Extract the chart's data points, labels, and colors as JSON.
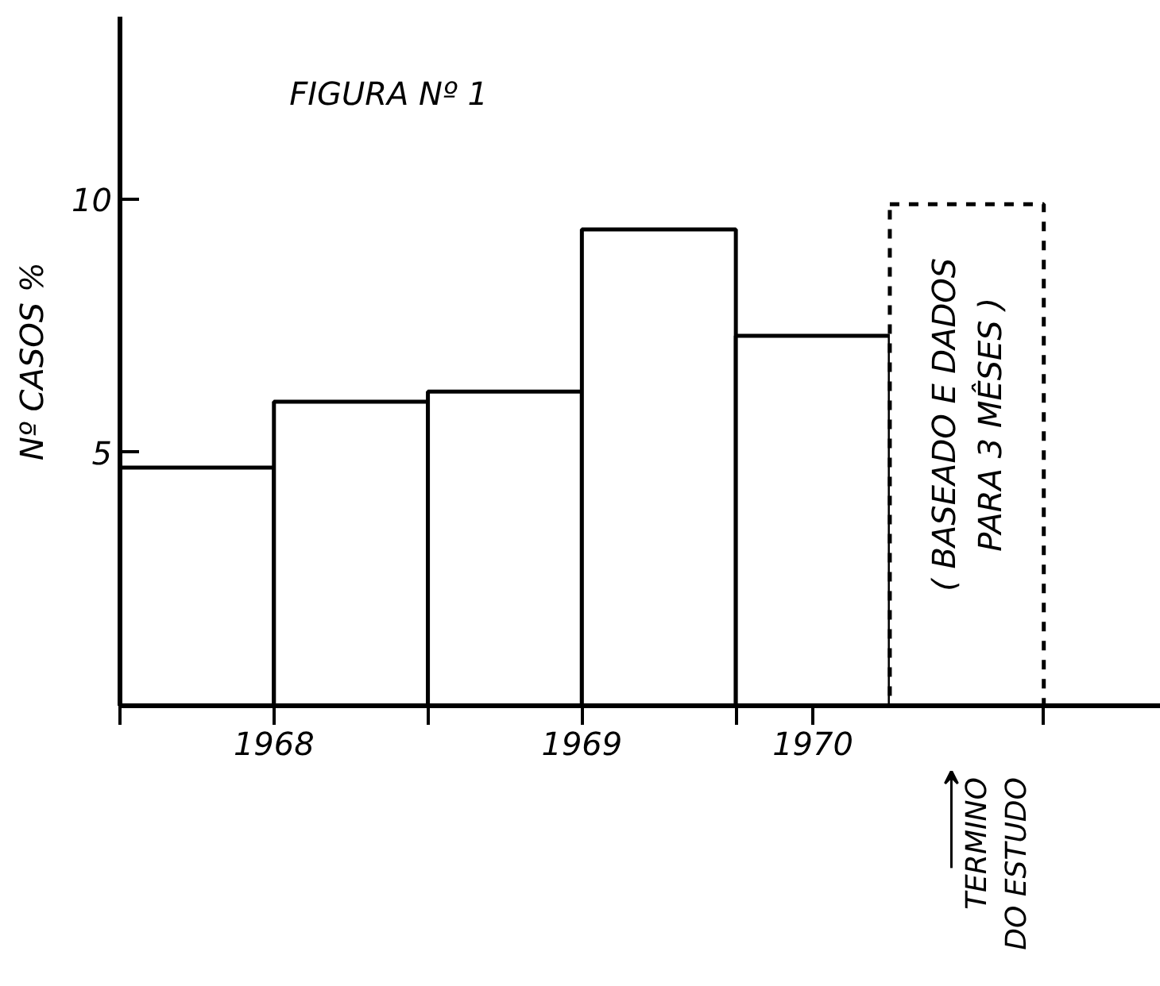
{
  "chart_data": {
    "type": "bar",
    "title": "FIGURA Nº 1",
    "ylabel": "Nº CASOS %",
    "x": [
      1968.25,
      1968.75,
      1969.25,
      1969.75,
      1970.25,
      1970.75
    ],
    "series": [
      {
        "color": "#000000",
        "line_style": "solid",
        "values": [
          4.7,
          6.0,
          6.2,
          9.4,
          7.3,
          null
        ]
      },
      {
        "color": "#000000",
        "line_style": "dashed",
        "values": [
          null,
          null,
          null,
          null,
          null,
          9.9
        ]
      }
    ],
    "xlim": [
      1968,
      1971.38
    ],
    "xticks": [
      {
        "value": 1968,
        "label": null
      },
      {
        "value": 1968.5,
        "label": "1968"
      },
      {
        "value": 1969,
        "label": null
      },
      {
        "value": 1969.5,
        "label": "1969"
      },
      {
        "value": 1970,
        "label": null
      },
      {
        "value": 1970.25,
        "label": "1970"
      },
      {
        "value": 1971,
        "label": null
      }
    ],
    "ylim": [
      0,
      13.6
    ],
    "yticks": [
      5,
      10
    ],
    "annotations": [
      "( BASEADO E DADOS\nPARA 3 MÊSES )",
      "TERMINO\nDO ESTUDO"
    ],
    "grid": false
  }
}
